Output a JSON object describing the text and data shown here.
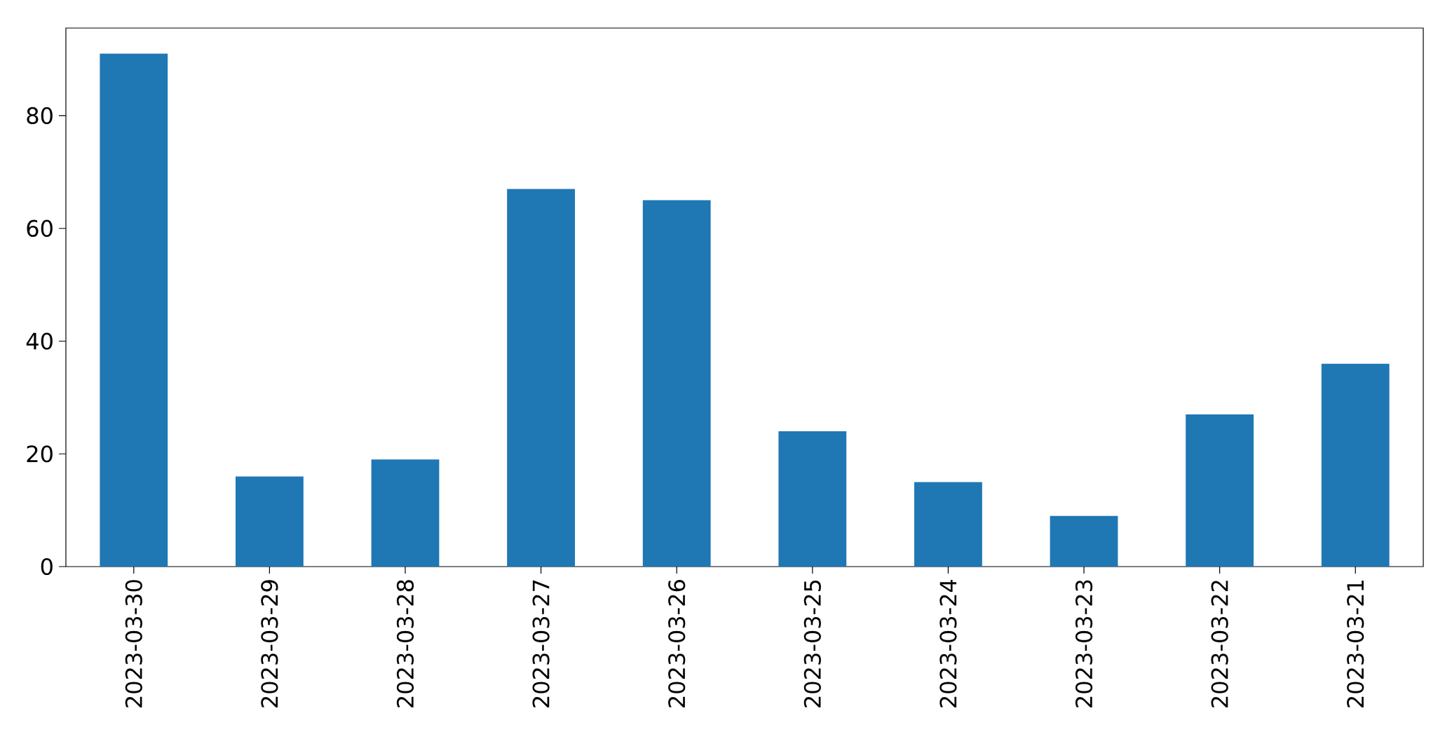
{
  "chart_data": {
    "type": "bar",
    "categories": [
      "2023-03-30",
      "2023-03-29",
      "2023-03-28",
      "2023-03-27",
      "2023-03-26",
      "2023-03-25",
      "2023-03-24",
      "2023-03-23",
      "2023-03-22",
      "2023-03-21"
    ],
    "values": [
      91,
      16,
      19,
      67,
      65,
      24,
      15,
      9,
      27,
      36
    ],
    "color": "#1f77b4",
    "ylim": [
      0,
      95.55
    ],
    "yticks": [
      0,
      20,
      40,
      60,
      80
    ]
  }
}
